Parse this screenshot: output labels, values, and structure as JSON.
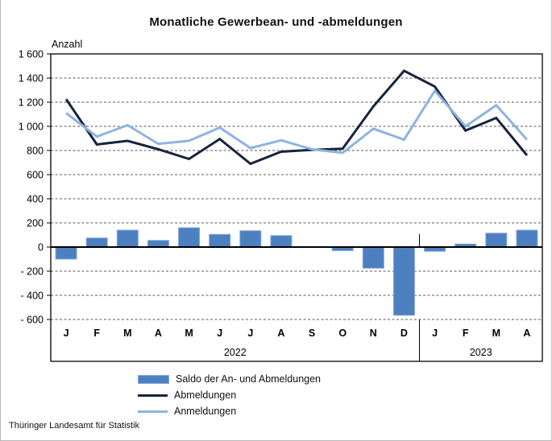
{
  "page": {
    "title": "Monatliche Gewerbean- und -abmeldungen",
    "source": "Thüringer Landesamt für Statistik"
  },
  "chart_data": {
    "type": "bar+line",
    "title": "Monatliche Gewerbean- und -abmeldungen",
    "ylabel": "Anzahl",
    "ylim": [
      -600,
      1600
    ],
    "ytick_step": 200,
    "ytick_labels": [
      "1 600",
      "1 400",
      "1 200",
      "1 000",
      "800",
      "600",
      "400",
      "200",
      "0",
      "- 200",
      "- 400",
      "- 600"
    ],
    "grid": "horizontal-dashed",
    "legend_position": "bottom-left",
    "categories": [
      "J",
      "F",
      "M",
      "A",
      "M",
      "J",
      "J",
      "A",
      "S",
      "O",
      "N",
      "D",
      "J",
      "F",
      "M",
      "A"
    ],
    "year_groups": [
      {
        "label": "2022",
        "months": 12
      },
      {
        "label": "2023",
        "months": 4
      }
    ],
    "series": [
      {
        "name": "Saldo der An- und Abmeldungen",
        "type": "bar",
        "color": "#4d80c0",
        "edge_color": "#82a8d9",
        "values": [
          -100,
          75,
          140,
          55,
          160,
          105,
          135,
          95,
          0,
          -30,
          -175,
          -565,
          -35,
          25,
          115,
          140
        ]
      },
      {
        "name": "Abmeldungen",
        "type": "line",
        "color": "#17243d",
        "values": [
          1225,
          850,
          880,
          810,
          730,
          895,
          690,
          790,
          805,
          815,
          1165,
          1460,
          1330,
          965,
          1070,
          760
        ]
      },
      {
        "name": "Anmeldungen",
        "type": "line",
        "color": "#8db3e2",
        "values": [
          1110,
          915,
          1010,
          855,
          880,
          990,
          820,
          885,
          810,
          780,
          980,
          890,
          1295,
          1000,
          1175,
          890
        ]
      }
    ]
  }
}
